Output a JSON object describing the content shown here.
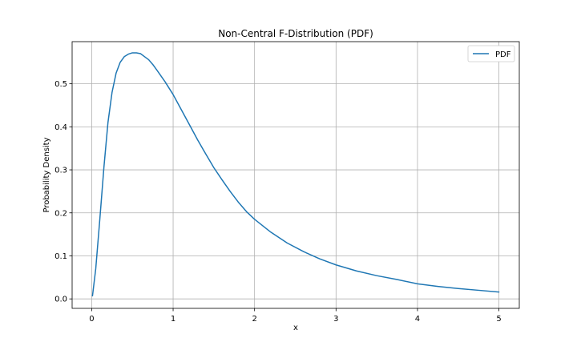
{
  "chart_data": {
    "type": "line",
    "title": "Non-Central F-Distribution (PDF)",
    "xlabel": "x",
    "ylabel": "Probability Density",
    "xlim": [
      -0.24,
      5.25
    ],
    "ylim": [
      -0.022,
      0.598
    ],
    "xticks": [
      0,
      1,
      2,
      3,
      4,
      5
    ],
    "yticks": [
      0.0,
      0.1,
      0.2,
      0.3,
      0.4,
      0.5
    ],
    "ytick_labels": [
      "0.0",
      "0.1",
      "0.2",
      "0.3",
      "0.4",
      "0.5"
    ],
    "grid": true,
    "legend_position": "top-right",
    "series": [
      {
        "name": "PDF",
        "color": "#1f77b4",
        "x": [
          0.01,
          0.05,
          0.1,
          0.15,
          0.2,
          0.25,
          0.3,
          0.35,
          0.4,
          0.45,
          0.5,
          0.55,
          0.6,
          0.65,
          0.7,
          0.75,
          0.8,
          0.9,
          1.0,
          1.1,
          1.2,
          1.3,
          1.4,
          1.5,
          1.6,
          1.7,
          1.8,
          1.9,
          2.0,
          2.2,
          2.4,
          2.6,
          2.8,
          3.0,
          3.25,
          3.5,
          3.75,
          4.0,
          4.25,
          4.5,
          4.75,
          5.0
        ],
        "y": [
          0.007,
          0.07,
          0.185,
          0.305,
          0.41,
          0.48,
          0.525,
          0.55,
          0.563,
          0.569,
          0.572,
          0.572,
          0.57,
          0.563,
          0.556,
          0.545,
          0.532,
          0.505,
          0.475,
          0.44,
          0.405,
          0.37,
          0.337,
          0.305,
          0.277,
          0.25,
          0.225,
          0.203,
          0.185,
          0.155,
          0.13,
          0.11,
          0.093,
          0.079,
          0.065,
          0.054,
          0.045,
          0.035,
          0.029,
          0.024,
          0.02,
          0.016
        ]
      }
    ]
  }
}
